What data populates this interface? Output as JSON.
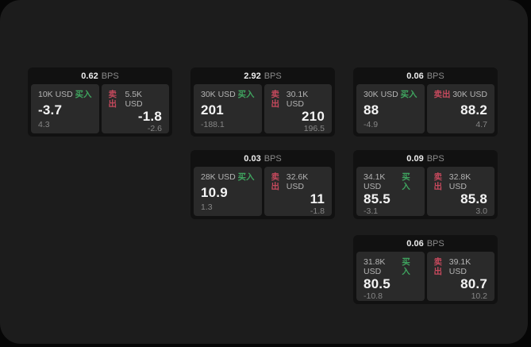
{
  "labels": {
    "bps": "BPS",
    "buy": "买入",
    "sell": "卖出"
  },
  "colors": {
    "buy_accent": "#3fa45f",
    "sell_accent": "#c5495d",
    "window_bg": "#1c1c1c",
    "card_bg": "#111111",
    "panel_bg": "#2a2a2a"
  },
  "cards": [
    {
      "bps": "0.62",
      "buy": {
        "amount": "10K USD",
        "value": "-3.7",
        "sub": "4.3"
      },
      "sell": {
        "amount": "5.5K USD",
        "value": "-1.8",
        "sub": "-2.6"
      }
    },
    {
      "bps": "2.92",
      "buy": {
        "amount": "30K USD",
        "value": "201",
        "sub": "-188.1"
      },
      "sell": {
        "amount": "30.1K USD",
        "value": "210",
        "sub": "196.5"
      }
    },
    {
      "bps": "0.06",
      "buy": {
        "amount": "30K USD",
        "value": "88",
        "sub": "-4.9"
      },
      "sell": {
        "amount": "30K USD",
        "value": "88.2",
        "sub": "4.7"
      }
    },
    {
      "bps": "0.03",
      "buy": {
        "amount": "28K USD",
        "value": "10.9",
        "sub": "1.3"
      },
      "sell": {
        "amount": "32.6K USD",
        "value": "11",
        "sub": "-1.8"
      }
    },
    {
      "bps": "0.09",
      "buy": {
        "amount": "34.1K USD",
        "value": "85.5",
        "sub": "-3.1"
      },
      "sell": {
        "amount": "32.8K USD",
        "value": "85.8",
        "sub": "3.0"
      }
    },
    {
      "bps": "0.06",
      "buy": {
        "amount": "31.8K USD",
        "value": "80.5",
        "sub": "-10.8"
      },
      "sell": {
        "amount": "39.1K USD",
        "value": "80.7",
        "sub": "10.2"
      }
    }
  ]
}
